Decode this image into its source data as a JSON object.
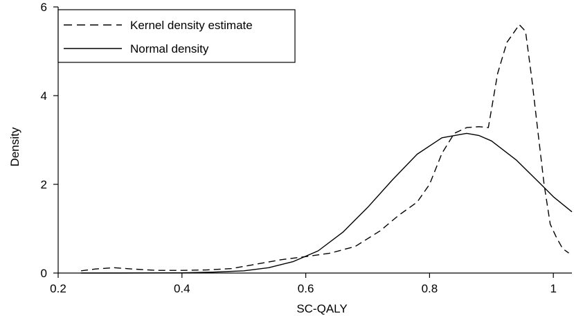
{
  "chart_data": {
    "type": "line",
    "xlabel": "SC-QALY",
    "ylabel": "Density",
    "xlim": [
      0.2,
      1.03
    ],
    "ylim": [
      0,
      6
    ],
    "xticks": [
      0.2,
      0.4,
      0.6,
      0.8,
      1
    ],
    "xtick_labels": [
      "0.2",
      "0.4",
      "0.6",
      "0.8",
      "1"
    ],
    "yticks": [
      0,
      2,
      4,
      6
    ],
    "ytick_labels": [
      "0",
      "2",
      "4",
      "6"
    ],
    "grid": false,
    "legend_position": "top-left",
    "series": [
      {
        "name": "Kernel density estimate",
        "style": "dashed",
        "x": [
          0.237,
          0.26,
          0.29,
          0.32,
          0.36,
          0.4,
          0.44,
          0.48,
          0.52,
          0.56,
          0.6,
          0.64,
          0.68,
          0.72,
          0.75,
          0.78,
          0.8,
          0.82,
          0.84,
          0.86,
          0.88,
          0.895,
          0.91,
          0.925,
          0.935,
          0.945,
          0.955,
          0.965,
          0.975,
          0.985,
          0.995,
          1.005,
          1.015,
          1.025
        ],
        "values": [
          0.05,
          0.09,
          0.12,
          0.09,
          0.06,
          0.06,
          0.07,
          0.1,
          0.2,
          0.3,
          0.37,
          0.45,
          0.6,
          0.95,
          1.3,
          1.6,
          2.0,
          2.7,
          3.15,
          3.28,
          3.3,
          3.28,
          4.5,
          5.2,
          5.4,
          5.6,
          5.45,
          4.4,
          3.2,
          2.0,
          1.1,
          0.8,
          0.55,
          0.45
        ]
      },
      {
        "name": "Normal density",
        "style": "solid",
        "x": [
          0.237,
          0.3,
          0.4,
          0.45,
          0.5,
          0.54,
          0.58,
          0.62,
          0.66,
          0.7,
          0.74,
          0.78,
          0.82,
          0.86,
          0.88,
          0.9,
          0.94,
          0.98,
          1.0,
          1.03
        ],
        "values": [
          0.0,
          0.0,
          0.005,
          0.02,
          0.05,
          0.12,
          0.26,
          0.5,
          0.92,
          1.48,
          2.1,
          2.68,
          3.05,
          3.15,
          3.1,
          2.98,
          2.55,
          2.0,
          1.72,
          1.38
        ]
      }
    ]
  }
}
